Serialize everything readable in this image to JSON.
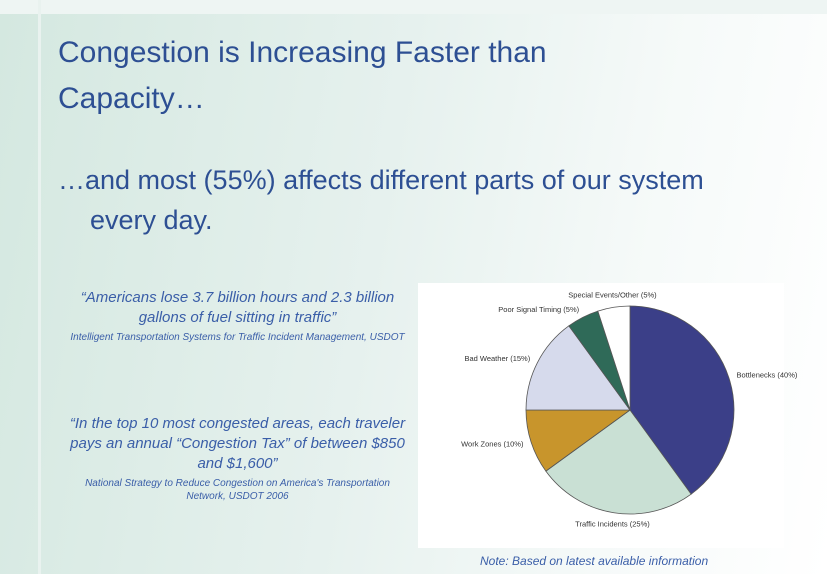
{
  "title": "Congestion is Increasing Faster than Capacity…",
  "subtitle": "…and most (55%) affects different parts of our system every day.",
  "quotes": [
    {
      "text": "“Americans lose 3.7 billion hours and 2.3 billion gallons of fuel sitting in traffic”",
      "source": "Intelligent Transportation Systems for Traffic Incident Management, USDOT"
    },
    {
      "text": "“In the top 10 most congested areas, each traveler pays an annual “Congestion Tax” of between $850 and $1,600”",
      "source": "National Strategy to Reduce Congestion on America's Transportation Network, USDOT 2006"
    }
  ],
  "note": "Note: Based on latest available information",
  "chart_data": {
    "type": "pie",
    "categories": [
      "Bottlenecks (40%)",
      "Traffic Incidents (25%)",
      "Work Zones (10%)",
      "Bad Weather (15%)",
      "Poor Signal Timing (5%)",
      "Special Events/Other (5%)"
    ],
    "values": [
      40,
      25,
      10,
      15,
      5,
      5
    ],
    "colors": [
      "#3b3f88",
      "#c9e0d4",
      "#c8952c",
      "#d6daec",
      "#2f6a58",
      "#ffffff"
    ]
  }
}
